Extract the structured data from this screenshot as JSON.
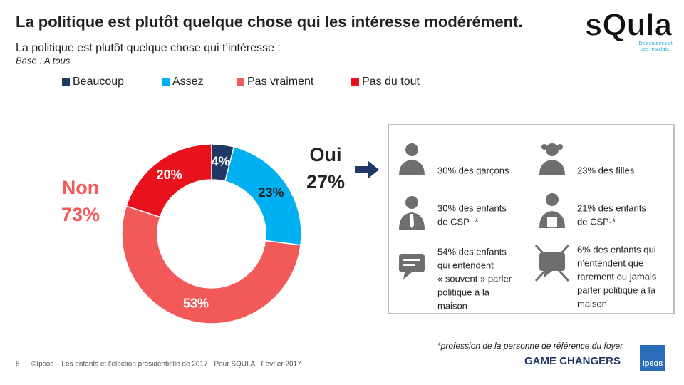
{
  "chart_data": {
    "type": "donut",
    "title": "La politique est plutôt quelque chose qui les intéresse modérément.",
    "subtitle": "La politique est plutôt quelque chose qui t’intéresse :",
    "base": "Base : A tous",
    "categories": [
      "Beaucoup",
      "Assez",
      "Pas vraiment",
      "Pas du tout"
    ],
    "values": [
      4,
      23,
      53,
      20
    ],
    "value_labels": [
      "4%",
      "23%",
      "53%",
      "20%"
    ],
    "colors": [
      "#1f3864",
      "#00b0f0",
      "#f25a5a",
      "#e8121c"
    ],
    "legend": "top"
  },
  "annotations": {
    "non_label": "Non",
    "non_value": "73%",
    "oui_label": "Oui",
    "oui_value": "27%"
  },
  "details": [
    {
      "lines": [
        "30% des garçons"
      ]
    },
    {
      "lines": [
        "23% des filles"
      ]
    },
    {
      "lines": [
        "30% des enfants",
        "de CSP+*"
      ]
    },
    {
      "lines": [
        "21% des enfants",
        "de CSP-*"
      ]
    },
    {
      "lines": [
        "54% des enfants",
        "qui entendent",
        "« souvent » parler",
        "politique à la",
        "maison"
      ]
    },
    {
      "lines": [
        "6% des enfants qui",
        "n’entendent que",
        "rarement ou jamais",
        "parler politique à la",
        "maison"
      ]
    }
  ],
  "footnote": "*profession de la personne de référence du foyer",
  "footer": {
    "page": "8",
    "source": "©Ipsos – Les enfants et l’élection présidentielle de 2017 - Pour SQULA - Février 2017",
    "tagline": "GAME CHANGERS",
    "ipsos": "Ipsos"
  },
  "logo": {
    "name": "sQula",
    "slogan": [
      "Des sourires et",
      "des résultats."
    ]
  }
}
